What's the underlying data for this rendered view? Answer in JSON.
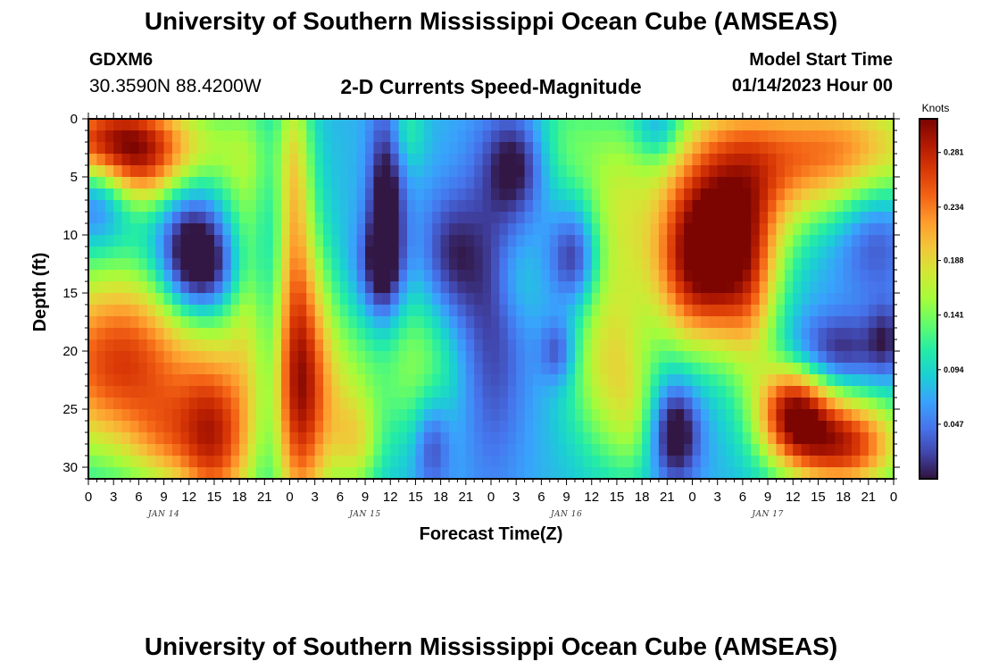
{
  "header": {
    "title": "University of Southern Mississippi Ocean Cube (AMSEAS)",
    "station": "GDXM6",
    "coords": "30.3590N  88.4200W",
    "subtitle": "2-D Currents Speed-Magnitude",
    "model_start_label": "Model Start Time",
    "model_start_value": "01/14/2023 Hour 00"
  },
  "footer": {
    "title": "University of Southern Mississippi Ocean Cube (AMSEAS)"
  },
  "chart_data": {
    "type": "heatmap",
    "title": "2-D Currents Speed-Magnitude",
    "xlabel": "Forecast Time(Z)",
    "ylabel": "Depth (ft)",
    "x_tick_labels": [
      "0",
      "3",
      "6",
      "9",
      "12",
      "15",
      "18",
      "21",
      "0",
      "3",
      "6",
      "9",
      "12",
      "15",
      "18",
      "21",
      "0",
      "3",
      "6",
      "9",
      "12",
      "15",
      "18",
      "21",
      "0",
      "3",
      "6",
      "9",
      "12",
      "15",
      "18",
      "21",
      "0"
    ],
    "date_labels": [
      {
        "label": "JAN 14",
        "hour": 9
      },
      {
        "label": "JAN 15",
        "hour": 33
      },
      {
        "label": "JAN 16",
        "hour": 57
      },
      {
        "label": "JAN 17",
        "hour": 81
      }
    ],
    "x_range_hours": [
      0,
      96
    ],
    "y_ticks": [
      0,
      5,
      10,
      15,
      20,
      25,
      30
    ],
    "y_range": [
      0,
      31
    ],
    "y_inverted": true,
    "colorbar": {
      "label": "Knots",
      "ticks": [
        0.047,
        0.094,
        0.141,
        0.188,
        0.234,
        0.281
      ],
      "range": [
        0,
        0.31
      ],
      "colormap": "turbo"
    },
    "features": [
      {
        "t": 6,
        "d": 3,
        "tw": 8,
        "dw": 3.5,
        "v": 0.18
      },
      {
        "t": 2,
        "d": 2,
        "tw": 5,
        "dw": 3,
        "v": 0.1
      },
      {
        "t": 1,
        "d": 6,
        "tw": 3,
        "dw": 3,
        "v": -0.12
      },
      {
        "t": 12,
        "d": 10,
        "tw": 3,
        "dw": 5,
        "v": -0.1
      },
      {
        "t": 14,
        "d": 13,
        "tw": 3,
        "dw": 2.5,
        "v": -0.07
      },
      {
        "t": 4,
        "d": 21,
        "tw": 8,
        "dw": 6,
        "v": 0.19
      },
      {
        "t": 15,
        "d": 28,
        "tw": 3,
        "dw": 5,
        "v": 0.16
      },
      {
        "t": 9,
        "d": 28,
        "tw": 3,
        "dw": 3,
        "v": 0.06
      },
      {
        "t": 19,
        "d": 15,
        "tw": 2,
        "dw": 12,
        "v": 0.06
      },
      {
        "t": 22,
        "d": 20,
        "tw": 1.5,
        "dw": 10,
        "v": -0.05
      },
      {
        "t": 25,
        "d": 23,
        "tw": 2.5,
        "dw": 9,
        "v": 0.2
      },
      {
        "t": 24.5,
        "d": 5,
        "tw": 1.5,
        "dw": 8,
        "v": 0.09
      },
      {
        "t": 30,
        "d": 24,
        "tw": 3,
        "dw": 6,
        "v": 0.07
      },
      {
        "t": 32,
        "d": 28,
        "tw": 2,
        "dw": 3,
        "v": 0.06
      },
      {
        "t": 35.5,
        "d": 8,
        "tw": 1.5,
        "dw": 6,
        "v": -0.1
      },
      {
        "t": 34.5,
        "d": 13,
        "tw": 2,
        "dw": 3,
        "v": -0.06
      },
      {
        "t": 39,
        "d": 21,
        "tw": 4,
        "dw": 5,
        "v": 0.07
      },
      {
        "t": 38,
        "d": 1,
        "tw": 1.5,
        "dw": 2.5,
        "v": 0.04
      },
      {
        "t": 43,
        "d": 12,
        "tw": 2.5,
        "dw": 4,
        "v": -0.06
      },
      {
        "t": 41,
        "d": 28,
        "tw": 1.5,
        "dw": 3,
        "v": -0.06
      },
      {
        "t": 48,
        "d": 17,
        "tw": 3,
        "dw": 10,
        "v": -0.06
      },
      {
        "t": 51,
        "d": 4,
        "tw": 2.5,
        "dw": 3,
        "v": -0.07
      },
      {
        "t": 51,
        "d": 14,
        "tw": 2,
        "dw": 3,
        "v": 0.03
      },
      {
        "t": 57,
        "d": 2,
        "tw": 3,
        "dw": 4,
        "v": 0.05
      },
      {
        "t": 58,
        "d": 12,
        "tw": 2,
        "dw": 3,
        "v": -0.08
      },
      {
        "t": 56,
        "d": 20,
        "tw": 1.5,
        "dw": 2,
        "v": -0.06
      },
      {
        "t": 62,
        "d": 21,
        "tw": 3.5,
        "dw": 6,
        "v": 0.1
      },
      {
        "t": 65,
        "d": 26,
        "tw": 2,
        "dw": 4,
        "v": 0.04
      },
      {
        "t": 63,
        "d": 7,
        "tw": 3,
        "dw": 6,
        "v": 0.07
      },
      {
        "t": 68,
        "d": 1,
        "tw": 2,
        "dw": 2,
        "v": -0.05
      },
      {
        "t": 70,
        "d": 27,
        "tw": 2,
        "dw": 3,
        "v": -0.1
      },
      {
        "t": 76,
        "d": 6,
        "tw": 6,
        "dw": 6,
        "v": 0.15
      },
      {
        "t": 73,
        "d": 13,
        "tw": 4,
        "dw": 5,
        "v": 0.19
      },
      {
        "t": 79,
        "d": 15,
        "tw": 2.5,
        "dw": 6,
        "v": 0.09
      },
      {
        "t": 90,
        "d": 3,
        "tw": 8,
        "dw": 4,
        "v": 0.16
      },
      {
        "t": 90,
        "d": 9,
        "tw": 6,
        "dw": 5,
        "v": -0.02
      },
      {
        "t": 94,
        "d": 9,
        "tw": 3,
        "dw": 4,
        "v": -0.05
      },
      {
        "t": 89,
        "d": 20,
        "tw": 4,
        "dw": 2.2,
        "v": -0.07
      },
      {
        "t": 95,
        "d": 19,
        "tw": 1.5,
        "dw": 2.2,
        "v": -0.05
      },
      {
        "t": 84,
        "d": 25,
        "tw": 3,
        "dw": 3,
        "v": 0.18
      },
      {
        "t": 90,
        "d": 28,
        "tw": 5,
        "dw": 3,
        "v": 0.2
      }
    ]
  },
  "colors": {
    "background": "#ffffff",
    "frame": "#000000"
  }
}
